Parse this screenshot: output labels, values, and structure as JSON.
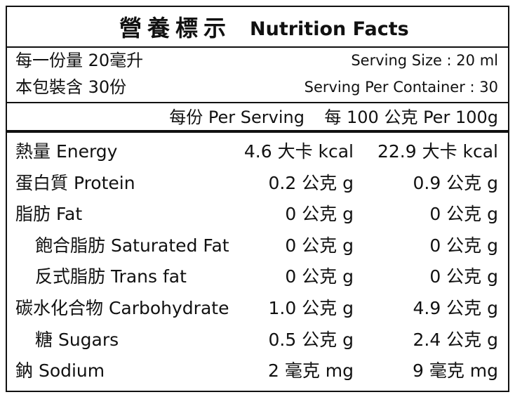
{
  "title_zh": "營養標示",
  "title_en": "Nutrition Facts",
  "serving": [
    {
      "left": "每一份量 20毫升",
      "right": "Serving Size : 20 ml"
    },
    {
      "left": "本包裝含 30份",
      "right": "Serving Per Container : 30"
    }
  ],
  "header": {
    "per_serving": "每份 Per Serving",
    "per_100": "每 100 公克 Per 100g"
  },
  "rows": [
    {
      "name": "熱量 Energy",
      "per_serving": "4.6 大卡 kcal",
      "per_100": "22.9 大卡 kcal",
      "indent": false
    },
    {
      "name": "蛋白質 Protein",
      "per_serving": "0.2 公克 g",
      "per_100": "0.9 公克 g",
      "indent": false
    },
    {
      "name": "脂肪 Fat",
      "per_serving": "0 公克 g",
      "per_100": "0 公克 g",
      "indent": false
    },
    {
      "name": "飽合脂肪 Saturated Fat",
      "per_serving": "0 公克 g",
      "per_100": "0 公克 g",
      "indent": true
    },
    {
      "name": "反式脂肪 Trans fat",
      "per_serving": "0 公克 g",
      "per_100": "0 公克 g",
      "indent": true
    },
    {
      "name": "碳水化合物 Carbohydrate",
      "per_serving": "1.0 公克 g",
      "per_100": "4.9 公克 g",
      "indent": false
    },
    {
      "name": "糖 Sugars",
      "per_serving": "0.5 公克 g",
      "per_100": "2.4 公克 g",
      "indent": true
    },
    {
      "name": "鈉 Sodium",
      "per_serving": "2 毫克 mg",
      "per_100": "9 毫克 mg",
      "indent": false
    }
  ]
}
